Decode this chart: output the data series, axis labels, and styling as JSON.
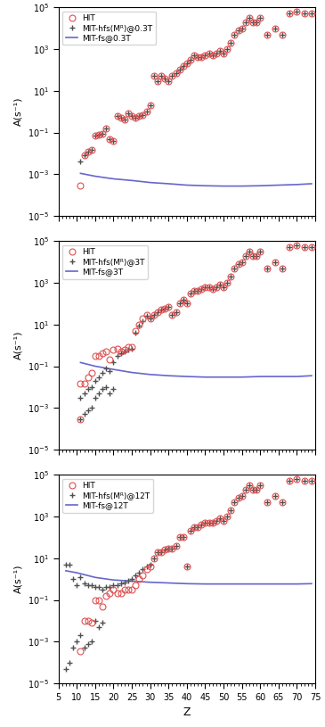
{
  "panel1": {
    "title_legend": [
      "HIT",
      "MIT-hfs(Mᴿ)@0.3T",
      "MIT-fs@0.3T"
    ],
    "hit_z": [
      11,
      12,
      13,
      14,
      15,
      16,
      17,
      18,
      19,
      20,
      21,
      22,
      23,
      24,
      25,
      26,
      27,
      28,
      29,
      30,
      31,
      32,
      33,
      34,
      35,
      36,
      37,
      38,
      39,
      40,
      41,
      42,
      43,
      44,
      45,
      46,
      47,
      48,
      49,
      50,
      51,
      52,
      53,
      54,
      55,
      56,
      57,
      58,
      59,
      60,
      62,
      64,
      66,
      68,
      70,
      72,
      74
    ],
    "hit_A": [
      0.0003,
      0.008,
      0.012,
      0.015,
      0.07,
      0.08,
      0.09,
      0.15,
      0.05,
      0.04,
      0.6,
      0.5,
      0.4,
      0.8,
      0.6,
      0.5,
      0.6,
      0.7,
      1.0,
      2.0,
      50.0,
      30.0,
      50.0,
      40.0,
      30.0,
      50.0,
      70.0,
      100.0,
      150.0,
      200.0,
      300.0,
      500.0,
      400.0,
      400.0,
      500.0,
      600.0,
      500.0,
      600.0,
      800.0,
      600.0,
      1000.0,
      2000.0,
      5000.0,
      8000.0,
      10000.0,
      20000.0,
      30000.0,
      20000.0,
      20000.0,
      30000.0,
      5000.0,
      10000.0,
      5000.0,
      50000.0,
      60000.0,
      50000.0,
      50000.0
    ],
    "mit_hfs_z": [
      11,
      12,
      13,
      14,
      15,
      16,
      17,
      18,
      19,
      20,
      21,
      22,
      23,
      24,
      25,
      26,
      27,
      28,
      29,
      30,
      31,
      32,
      33,
      34,
      35,
      36,
      37,
      38,
      39,
      40,
      41,
      42,
      43,
      44,
      45,
      46,
      47,
      48,
      49,
      50,
      51,
      52,
      53,
      54,
      55,
      56,
      57,
      58,
      59,
      60,
      62,
      64,
      66,
      68,
      70,
      72,
      74
    ],
    "mit_hfs_A": [
      0.004,
      0.008,
      0.012,
      0.015,
      0.07,
      0.08,
      0.09,
      0.15,
      0.05,
      0.04,
      0.6,
      0.5,
      0.4,
      0.8,
      0.6,
      0.5,
      0.6,
      0.7,
      1.0,
      2.0,
      50.0,
      30.0,
      50.0,
      40.0,
      30.0,
      50.0,
      70.0,
      100.0,
      150.0,
      200.0,
      300.0,
      500.0,
      400.0,
      400.0,
      500.0,
      600.0,
      500.0,
      600.0,
      800.0,
      600.0,
      1000.0,
      2000.0,
      5000.0,
      8000.0,
      10000.0,
      20000.0,
      30000.0,
      20000.0,
      20000.0,
      30000.0,
      5000.0,
      10000.0,
      5000.0,
      50000.0,
      60000.0,
      50000.0,
      50000.0
    ],
    "mit_fs_z": [
      11,
      15,
      20,
      25,
      30,
      35,
      40,
      45,
      50,
      55,
      60,
      65,
      70,
      74
    ],
    "mit_fs_A": [
      0.0011,
      0.0008,
      0.0006,
      0.0005,
      0.0004,
      0.00035,
      0.0003,
      0.00028,
      0.00027,
      0.00027,
      0.00028,
      0.0003,
      0.00032,
      0.00035
    ],
    "ylim": [
      1e-05,
      100000.0
    ],
    "yticks": [
      -5,
      -4,
      -3,
      -2,
      -1,
      0,
      1,
      2,
      3,
      4,
      5
    ]
  },
  "panel2": {
    "title_legend": [
      "HIT",
      "MIT-hfs(Mᴿ)@3T",
      "MIT-fs@3T"
    ],
    "hit_z": [
      11,
      12,
      13,
      14,
      15,
      16,
      17,
      18,
      19,
      20,
      21,
      22,
      23,
      24,
      25,
      26,
      27,
      28,
      29,
      30,
      31,
      32,
      33,
      34,
      35,
      36,
      37,
      38,
      39,
      40,
      41,
      42,
      43,
      44,
      45,
      46,
      47,
      48,
      49,
      50,
      51,
      52,
      53,
      54,
      55,
      56,
      57,
      58,
      59,
      60,
      62,
      64,
      66,
      68,
      70,
      72,
      74
    ],
    "hit_A": [
      0.015,
      0.015,
      0.03,
      0.05,
      0.3,
      0.3,
      0.4,
      0.5,
      0.2,
      0.6,
      0.7,
      0.5,
      0.6,
      0.8,
      0.8,
      5.0,
      10.0,
      20.0,
      30.0,
      20.0,
      30.0,
      40.0,
      50.0,
      60.0,
      70.0,
      30.0,
      40.0,
      100.0,
      150.0,
      100.0,
      300.0,
      400.0,
      400.0,
      500.0,
      600.0,
      600.0,
      500.0,
      600.0,
      800.0,
      600.0,
      1000.0,
      2000.0,
      5000.0,
      8000.0,
      10000.0,
      20000.0,
      30000.0,
      20000.0,
      20000.0,
      30000.0,
      5000.0,
      10000.0,
      5000.0,
      50000.0,
      60000.0,
      50000.0,
      50000.0
    ],
    "mit_hfs_z": [
      11,
      12,
      13,
      14,
      15,
      16,
      17,
      18,
      19,
      20,
      21,
      22,
      23,
      24,
      25,
      26,
      27,
      28,
      29,
      30,
      31,
      32,
      33,
      34,
      35,
      36,
      37,
      38,
      39,
      40,
      41,
      42,
      43,
      44,
      45,
      46,
      47,
      48,
      49,
      50,
      51,
      52,
      53,
      54,
      55,
      56,
      57,
      58,
      59,
      60,
      62,
      64,
      66,
      68,
      70,
      72,
      74
    ],
    "mit_hfs_A": [
      0.003,
      0.005,
      0.008,
      0.01,
      0.02,
      0.03,
      0.05,
      0.08,
      0.06,
      0.15,
      0.3,
      0.4,
      0.5,
      0.6,
      0.7,
      4.0,
      9.0,
      15.0,
      25.0,
      20.0,
      30.0,
      40.0,
      50.0,
      60.0,
      70.0,
      30.0,
      40.0,
      100.0,
      150.0,
      100.0,
      300.0,
      400.0,
      400.0,
      500.0,
      600.0,
      600.0,
      500.0,
      600.0,
      800.0,
      600.0,
      1000.0,
      2000.0,
      5000.0,
      8000.0,
      10000.0,
      20000.0,
      30000.0,
      20000.0,
      20000.0,
      30000.0,
      5000.0,
      10000.0,
      5000.0,
      50000.0,
      60000.0,
      50000.0,
      50000.0
    ],
    "mit_fs_z": [
      11,
      15,
      20,
      25,
      30,
      35,
      40,
      45,
      50,
      55,
      60,
      65,
      70,
      74
    ],
    "mit_fs_A": [
      0.15,
      0.1,
      0.07,
      0.05,
      0.04,
      0.035,
      0.032,
      0.03,
      0.03,
      0.03,
      0.032,
      0.032,
      0.032,
      0.035
    ],
    "ylim": [
      1e-05,
      100000.0
    ],
    "hit_extra_z": [
      11
    ],
    "hit_extra_A": [
      0.0003
    ],
    "cross_low_z": [
      11,
      12,
      13,
      14,
      15,
      16,
      17,
      18,
      19,
      20
    ],
    "cross_low_A": [
      0.0003,
      0.0005,
      0.0008,
      0.001,
      0.003,
      0.005,
      0.008,
      0.01,
      0.005,
      0.008
    ]
  },
  "panel3": {
    "title_legend": [
      "HIT",
      "MIT-hfs(Mᴿ)@12T",
      "MIT-fs@12T"
    ],
    "hit_z": [
      11,
      12,
      13,
      14,
      15,
      16,
      17,
      18,
      19,
      20,
      21,
      22,
      23,
      24,
      25,
      26,
      27,
      28,
      29,
      30,
      31,
      32,
      33,
      34,
      35,
      36,
      37,
      38,
      39,
      40,
      41,
      42,
      43,
      44,
      45,
      46,
      47,
      48,
      49,
      50,
      51,
      52,
      53,
      54,
      55,
      56,
      57,
      58,
      59,
      60,
      62,
      64,
      66,
      68,
      70,
      72,
      74
    ],
    "hit_A": [
      0.00035,
      0.01,
      0.01,
      0.008,
      0.1,
      0.1,
      0.05,
      0.15,
      0.2,
      0.3,
      0.2,
      0.2,
      0.3,
      0.3,
      0.3,
      0.5,
      1.0,
      1.5,
      3.0,
      4.0,
      10.0,
      20.0,
      20.0,
      25.0,
      30.0,
      30.0,
      40.0,
      100.0,
      100.0,
      4.0,
      200.0,
      300.0,
      300.0,
      400.0,
      500.0,
      500.0,
      500.0,
      600.0,
      800.0,
      600.0,
      1000.0,
      2000.0,
      5000.0,
      8000.0,
      10000.0,
      20000.0,
      30000.0,
      20000.0,
      20000.0,
      30000.0,
      5000.0,
      10000.0,
      5000.0,
      50000.0,
      60000.0,
      50000.0,
      50000.0
    ],
    "mit_hfs_z": [
      7,
      8,
      9,
      10,
      11,
      12,
      13,
      14,
      15,
      16,
      17,
      18,
      19,
      20,
      21,
      22,
      23,
      24,
      25,
      26,
      27,
      28,
      29,
      30,
      31,
      32,
      33,
      34,
      35,
      36,
      37,
      38,
      39,
      40,
      41,
      42,
      43,
      44,
      45,
      46,
      47,
      48,
      49,
      50,
      51,
      52,
      53,
      54,
      55,
      56,
      57,
      58,
      59,
      60,
      62,
      64,
      66,
      68,
      70,
      72,
      74
    ],
    "mit_hfs_A": [
      5.0,
      5.0,
      1.0,
      0.5,
      1.2,
      0.6,
      0.5,
      0.5,
      0.4,
      0.4,
      0.3,
      0.4,
      0.4,
      0.5,
      0.5,
      0.6,
      0.7,
      0.8,
      1.0,
      1.5,
      2.0,
      3.0,
      4.0,
      5.0,
      10.0,
      20.0,
      20.0,
      25.0,
      30.0,
      30.0,
      40.0,
      100.0,
      100.0,
      4.0,
      200.0,
      300.0,
      300.0,
      400.0,
      500.0,
      500.0,
      500.0,
      600.0,
      800.0,
      600.0,
      1000.0,
      2000.0,
      5000.0,
      8000.0,
      10000.0,
      20000.0,
      30000.0,
      20000.0,
      20000.0,
      30000.0,
      5000.0,
      10000.0,
      5000.0,
      50000.0,
      60000.0,
      50000.0,
      50000.0
    ],
    "mit_fs_z": [
      7,
      10,
      15,
      20,
      25,
      30,
      35,
      40,
      45,
      50,
      55,
      60,
      65,
      70,
      74
    ],
    "mit_fs_A": [
      2.5,
      2.0,
      1.2,
      0.9,
      0.8,
      0.7,
      0.65,
      0.6,
      0.58,
      0.58,
      0.58,
      0.58,
      0.58,
      0.58,
      0.6
    ],
    "ylim": [
      1e-05,
      100000.0
    ],
    "cross_low_z": [
      7,
      8,
      9,
      10,
      11,
      12,
      13,
      14,
      15,
      16,
      17
    ],
    "cross_low_A": [
      5e-05,
      0.0001,
      0.0005,
      0.001,
      0.002,
      0.0005,
      0.0008,
      0.001,
      0.01,
      0.005,
      0.008
    ]
  },
  "circle_color": "#e05050",
  "cross_color": "#505050",
  "line_color": "#6666cc",
  "xlim": [
    5,
    75
  ],
  "xticks": [
    5,
    10,
    15,
    20,
    25,
    30,
    35,
    40,
    45,
    50,
    55,
    60,
    65,
    70,
    75
  ],
  "xlabel": "Z",
  "ylabel": "A(s⁻¹)"
}
